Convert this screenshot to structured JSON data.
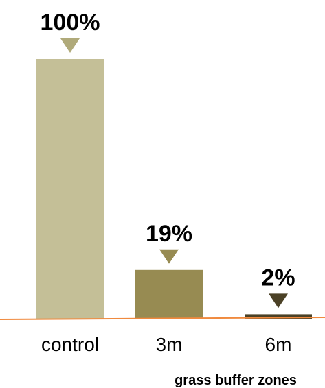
{
  "chart_data": {
    "type": "bar",
    "title": "",
    "categories": [
      "control",
      "3m",
      "6m"
    ],
    "values": [
      100,
      19,
      2
    ],
    "value_labels": [
      "100%",
      "19%",
      "2%"
    ],
    "xlabel": "grass buffer zones",
    "ylabel": "",
    "ylim": [
      0,
      100
    ],
    "grid": false,
    "legend": "none",
    "bar_colors": [
      "#c4bf97",
      "#978b52",
      "#4b4126"
    ],
    "marker_colors": [
      "#b0aa7a",
      "#978b52",
      "#4b4126"
    ],
    "baseline_color": "#f08a3e"
  }
}
